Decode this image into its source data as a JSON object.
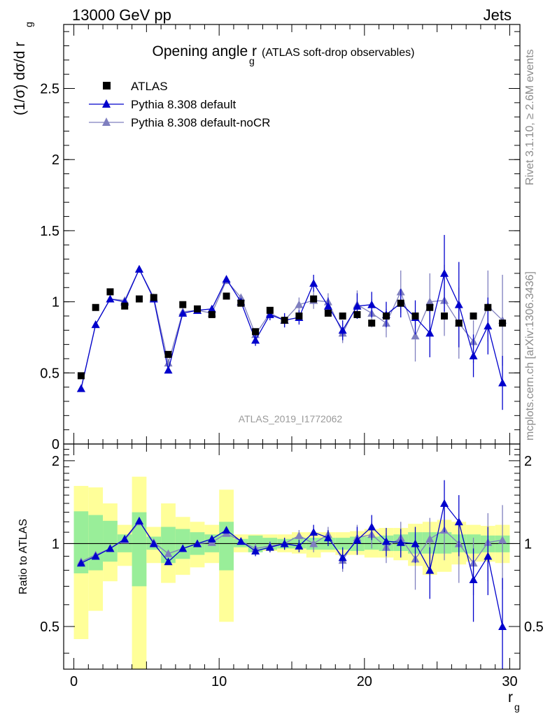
{
  "header": {
    "left": "13000 GeV pp",
    "right": "Jets",
    "side_top": "Rivet 3.1.10, ≥ 2.6M events",
    "side_bottom": "mcplots.cern.ch [arXiv:1306.3436]",
    "analysis_id": "ATLAS_2019_I1772062"
  },
  "chart_data": [
    {
      "type": "scatter",
      "panel": "main",
      "title_main": "Opening angle r",
      "title_sub": "g",
      "title_suffix": "(ATLAS soft-drop observables)",
      "ylabel_main": "(1/σ) dσ/d r",
      "ylabel_sub": "g",
      "xlim": [
        -0.7,
        30.7
      ],
      "ylim": [
        0,
        2.95
      ],
      "yticks": [
        0,
        0.5,
        1,
        1.5,
        2,
        2.5
      ],
      "ytick_labels": [
        "0",
        "0.5",
        "1",
        "1.5",
        "2",
        "2.5"
      ],
      "legend_position": "top-left",
      "x": [
        0.5,
        1.5,
        2.5,
        3.5,
        4.5,
        5.5,
        6.5,
        7.5,
        8.5,
        9.5,
        10.5,
        11.5,
        12.5,
        13.5,
        14.5,
        15.5,
        16.5,
        17.5,
        18.5,
        19.5,
        20.5,
        21.5,
        22.5,
        23.5,
        24.5,
        25.5,
        26.5,
        27.5,
        28.5,
        29.5
      ],
      "series": [
        {
          "name": "ATLAS",
          "color": "#000000",
          "marker": "square",
          "values": [
            0.48,
            0.96,
            1.07,
            0.97,
            1.02,
            1.03,
            0.63,
            0.98,
            0.95,
            0.91,
            1.04,
            0.99,
            0.79,
            0.94,
            0.87,
            0.9,
            1.02,
            0.92,
            0.9,
            0.91,
            0.85,
            0.9,
            0.99,
            0.9,
            0.96,
            0.9,
            0.85,
            0.9,
            0.96,
            0.85
          ]
        },
        {
          "name": "Pythia 8.308 default",
          "color": "#0000cc",
          "marker": "triangle",
          "values": [
            0.39,
            0.84,
            1.02,
            1.0,
            1.23,
            1.02,
            0.52,
            0.92,
            0.94,
            0.95,
            1.16,
            1.0,
            0.73,
            0.91,
            0.87,
            0.89,
            1.13,
            0.97,
            0.8,
            0.97,
            0.98,
            0.91,
            0.99,
            0.89,
            0.78,
            1.2,
            0.98,
            0.62,
            0.83,
            0.43
          ],
          "errors": [
            0,
            0,
            0,
            0,
            0,
            0,
            0,
            0,
            0,
            0,
            0,
            0,
            0.04,
            0.04,
            0.05,
            0.05,
            0.06,
            0.06,
            0.07,
            0.09,
            0.09,
            0.09,
            0.1,
            0.12,
            0.17,
            0.27,
            0.3,
            0.15,
            0.2,
            0.19
          ]
        },
        {
          "name": "Pythia 8.308 default-noCR",
          "color": "#7f7fbf",
          "marker": "triangle",
          "values": [
            0.39,
            0.84,
            1.02,
            1.01,
            1.23,
            1.03,
            0.57,
            0.93,
            0.94,
            0.92,
            1.15,
            1.03,
            0.77,
            0.92,
            0.87,
            0.98,
            1.01,
            1.0,
            0.78,
            0.98,
            0.92,
            0.85,
            1.07,
            0.76,
            1.0,
            1.01,
            0.85,
            0.72,
            0.97,
            0.87
          ],
          "errors": [
            0,
            0,
            0,
            0,
            0,
            0,
            0,
            0,
            0,
            0,
            0,
            0,
            0.04,
            0.04,
            0.05,
            0.05,
            0.06,
            0.06,
            0.07,
            0.1,
            0.1,
            0.1,
            0.15,
            0.18,
            0.2,
            0.25,
            0.25,
            0.15,
            0.25,
            0.32
          ]
        }
      ]
    },
    {
      "type": "scatter",
      "panel": "ratio",
      "ylabel": "Ratio to ATLAS",
      "xlabel_main": "r",
      "xlabel_sub": "g",
      "xlim": [
        -0.7,
        30.7
      ],
      "ylim": [
        0.35,
        2.3
      ],
      "yticks": [
        0.5,
        1,
        2
      ],
      "ytick_labels": [
        "0.5",
        "1",
        "2"
      ],
      "xticks": [
        0,
        10,
        20,
        30
      ],
      "xtick_labels": [
        "0",
        "10",
        "20",
        "30"
      ],
      "reference_line": 1,
      "bands": {
        "inner_color": "#99ee99",
        "outer_color": "#ffff99",
        "inner_low": [
          0.78,
          0.8,
          0.86,
          0.93,
          0.7,
          0.95,
          0.85,
          0.88,
          0.91,
          0.93,
          0.8,
          0.97,
          0.93,
          0.95,
          0.96,
          0.96,
          0.95,
          0.95,
          0.95,
          0.94,
          0.95,
          0.94,
          0.94,
          0.92,
          0.92,
          0.92,
          0.93,
          0.92,
          0.93,
          0.93
        ],
        "inner_high": [
          1.31,
          1.27,
          1.21,
          1.08,
          1.3,
          1.06,
          1.15,
          1.13,
          1.1,
          1.08,
          1.2,
          1.04,
          1.07,
          1.05,
          1.04,
          1.05,
          1.05,
          1.05,
          1.05,
          1.06,
          1.06,
          1.07,
          1.08,
          1.1,
          1.1,
          1.1,
          1.08,
          1.08,
          1.07,
          1.07
        ],
        "outer_low": [
          0.45,
          0.57,
          0.73,
          0.83,
          0.3,
          0.85,
          0.72,
          0.77,
          0.82,
          0.85,
          0.52,
          0.93,
          0.94,
          0.94,
          0.93,
          0.92,
          0.89,
          0.93,
          0.91,
          0.91,
          0.89,
          0.89,
          0.87,
          0.83,
          0.77,
          0.79,
          0.84,
          0.86,
          0.86,
          0.85
        ],
        "outer_high": [
          1.62,
          1.6,
          1.4,
          1.17,
          1.75,
          1.15,
          1.4,
          1.25,
          1.2,
          1.17,
          1.57,
          1.08,
          1.08,
          1.08,
          1.08,
          1.1,
          1.1,
          1.1,
          1.1,
          1.11,
          1.13,
          1.14,
          1.14,
          1.18,
          1.2,
          1.22,
          1.2,
          1.17,
          1.16,
          1.17
        ]
      },
      "series": [
        {
          "name": "Pythia 8.308 default",
          "color": "#0000cc",
          "values": [
            0.85,
            0.9,
            0.96,
            1.04,
            1.21,
            1.0,
            0.86,
            0.96,
            1.0,
            1.04,
            1.12,
            1.02,
            0.94,
            0.97,
            1.0,
            0.98,
            1.1,
            1.05,
            0.89,
            1.03,
            1.15,
            1.02,
            1.01,
            1.0,
            0.8,
            1.4,
            1.2,
            0.74,
            0.9,
            0.5
          ],
          "errors": [
            0,
            0,
            0,
            0,
            0,
            0,
            0,
            0,
            0,
            0,
            0,
            0,
            0.04,
            0.04,
            0.05,
            0.05,
            0.07,
            0.07,
            0.08,
            0.12,
            0.12,
            0.12,
            0.12,
            0.15,
            0.17,
            0.3,
            0.3,
            0.22,
            0.25,
            0.25
          ]
        },
        {
          "name": "Pythia 8.308 default-noCR",
          "color": "#7f7fbf",
          "values": [
            0.86,
            0.91,
            0.96,
            1.03,
            1.2,
            1.01,
            0.92,
            0.96,
            1.0,
            1.01,
            1.09,
            1.02,
            0.96,
            0.98,
            1.0,
            1.07,
            1.0,
            1.08,
            0.87,
            1.05,
            1.08,
            0.97,
            1.05,
            0.88,
            1.04,
            1.12,
            1.0,
            0.85,
            1.01,
            1.03
          ],
          "errors": [
            0,
            0,
            0,
            0,
            0,
            0,
            0,
            0,
            0,
            0,
            0,
            0,
            0.04,
            0.04,
            0.05,
            0.05,
            0.07,
            0.07,
            0.08,
            0.12,
            0.12,
            0.12,
            0.15,
            0.2,
            0.2,
            0.25,
            0.28,
            0.2,
            0.28,
            0.35
          ]
        }
      ]
    }
  ]
}
